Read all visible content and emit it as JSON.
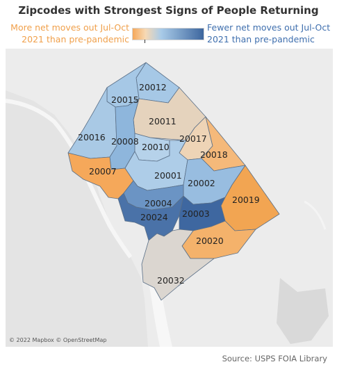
{
  "title": "Zipcodes with Strongest Signs of People Returning",
  "legend": {
    "left_text": "More net moves out Jul-Oct 2021 than pre-pandemic",
    "right_text": "Fewer net moves out Jul-Oct 2021 than pre-pandemic",
    "low_color": "#f5a85a",
    "mid_color": "#a9cbe8",
    "high_color": "#3d669e"
  },
  "zipcodes": [
    {
      "zip": "20012",
      "color": "#a6c8e6"
    },
    {
      "zip": "20015",
      "color": "#a6c8e6"
    },
    {
      "zip": "20011",
      "color": "#e5d3bd"
    },
    {
      "zip": "20016",
      "color": "#a9c9e5"
    },
    {
      "zip": "20008",
      "color": "#8eb6dc"
    },
    {
      "zip": "20010",
      "color": "#b6d2ea"
    },
    {
      "zip": "20017",
      "color": "#eed4b6"
    },
    {
      "zip": "20018",
      "color": "#f5b97a"
    },
    {
      "zip": "20007",
      "color": "#f5a85a"
    },
    {
      "zip": "20001",
      "color": "#aecde8"
    },
    {
      "zip": "20002",
      "color": "#98bde0"
    },
    {
      "zip": "20019",
      "color": "#f2a552"
    },
    {
      "zip": "20004",
      "color": "#6b94c4"
    },
    {
      "zip": "20024",
      "color": "#4a72a8"
    },
    {
      "zip": "20003",
      "color": "#3e67a0"
    },
    {
      "zip": "20020",
      "color": "#f4b26b"
    },
    {
      "zip": "20032",
      "color": "#dbd6d0"
    }
  ],
  "attribution": "© 2022 Mapbox © OpenStreetMap",
  "source": "Source: USPS FOIA Library"
}
